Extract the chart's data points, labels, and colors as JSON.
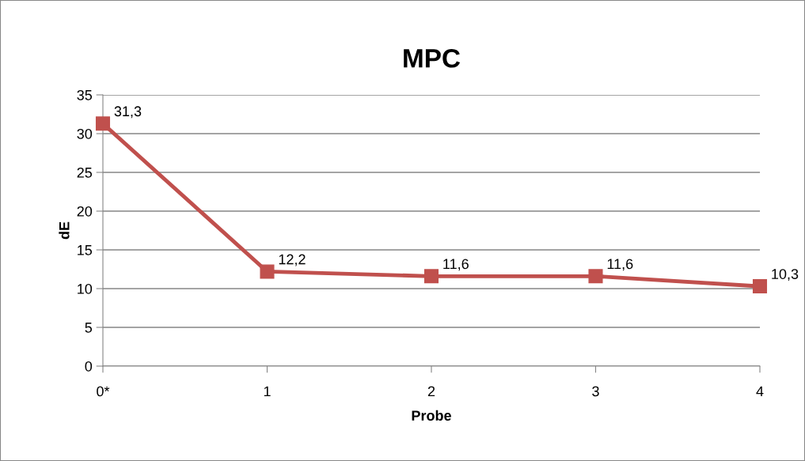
{
  "chart_data": {
    "type": "line",
    "title": "MPC",
    "xlabel": "Probe",
    "ylabel": "dE",
    "categories": [
      "0*",
      "1",
      "2",
      "3",
      "4"
    ],
    "series": [
      {
        "color": "#c0504d",
        "values": [
          31.3,
          12.2,
          11.6,
          11.6,
          10.3
        ],
        "value_labels": [
          "31,3",
          "12,2",
          "11,6",
          "11,6",
          "10,3"
        ]
      }
    ],
    "ylim": [
      0,
      35
    ],
    "yticks": [
      0,
      5,
      10,
      15,
      20,
      25,
      30,
      35
    ],
    "grid": "y",
    "marker": "square",
    "line_style": "solid",
    "legend": false
  }
}
